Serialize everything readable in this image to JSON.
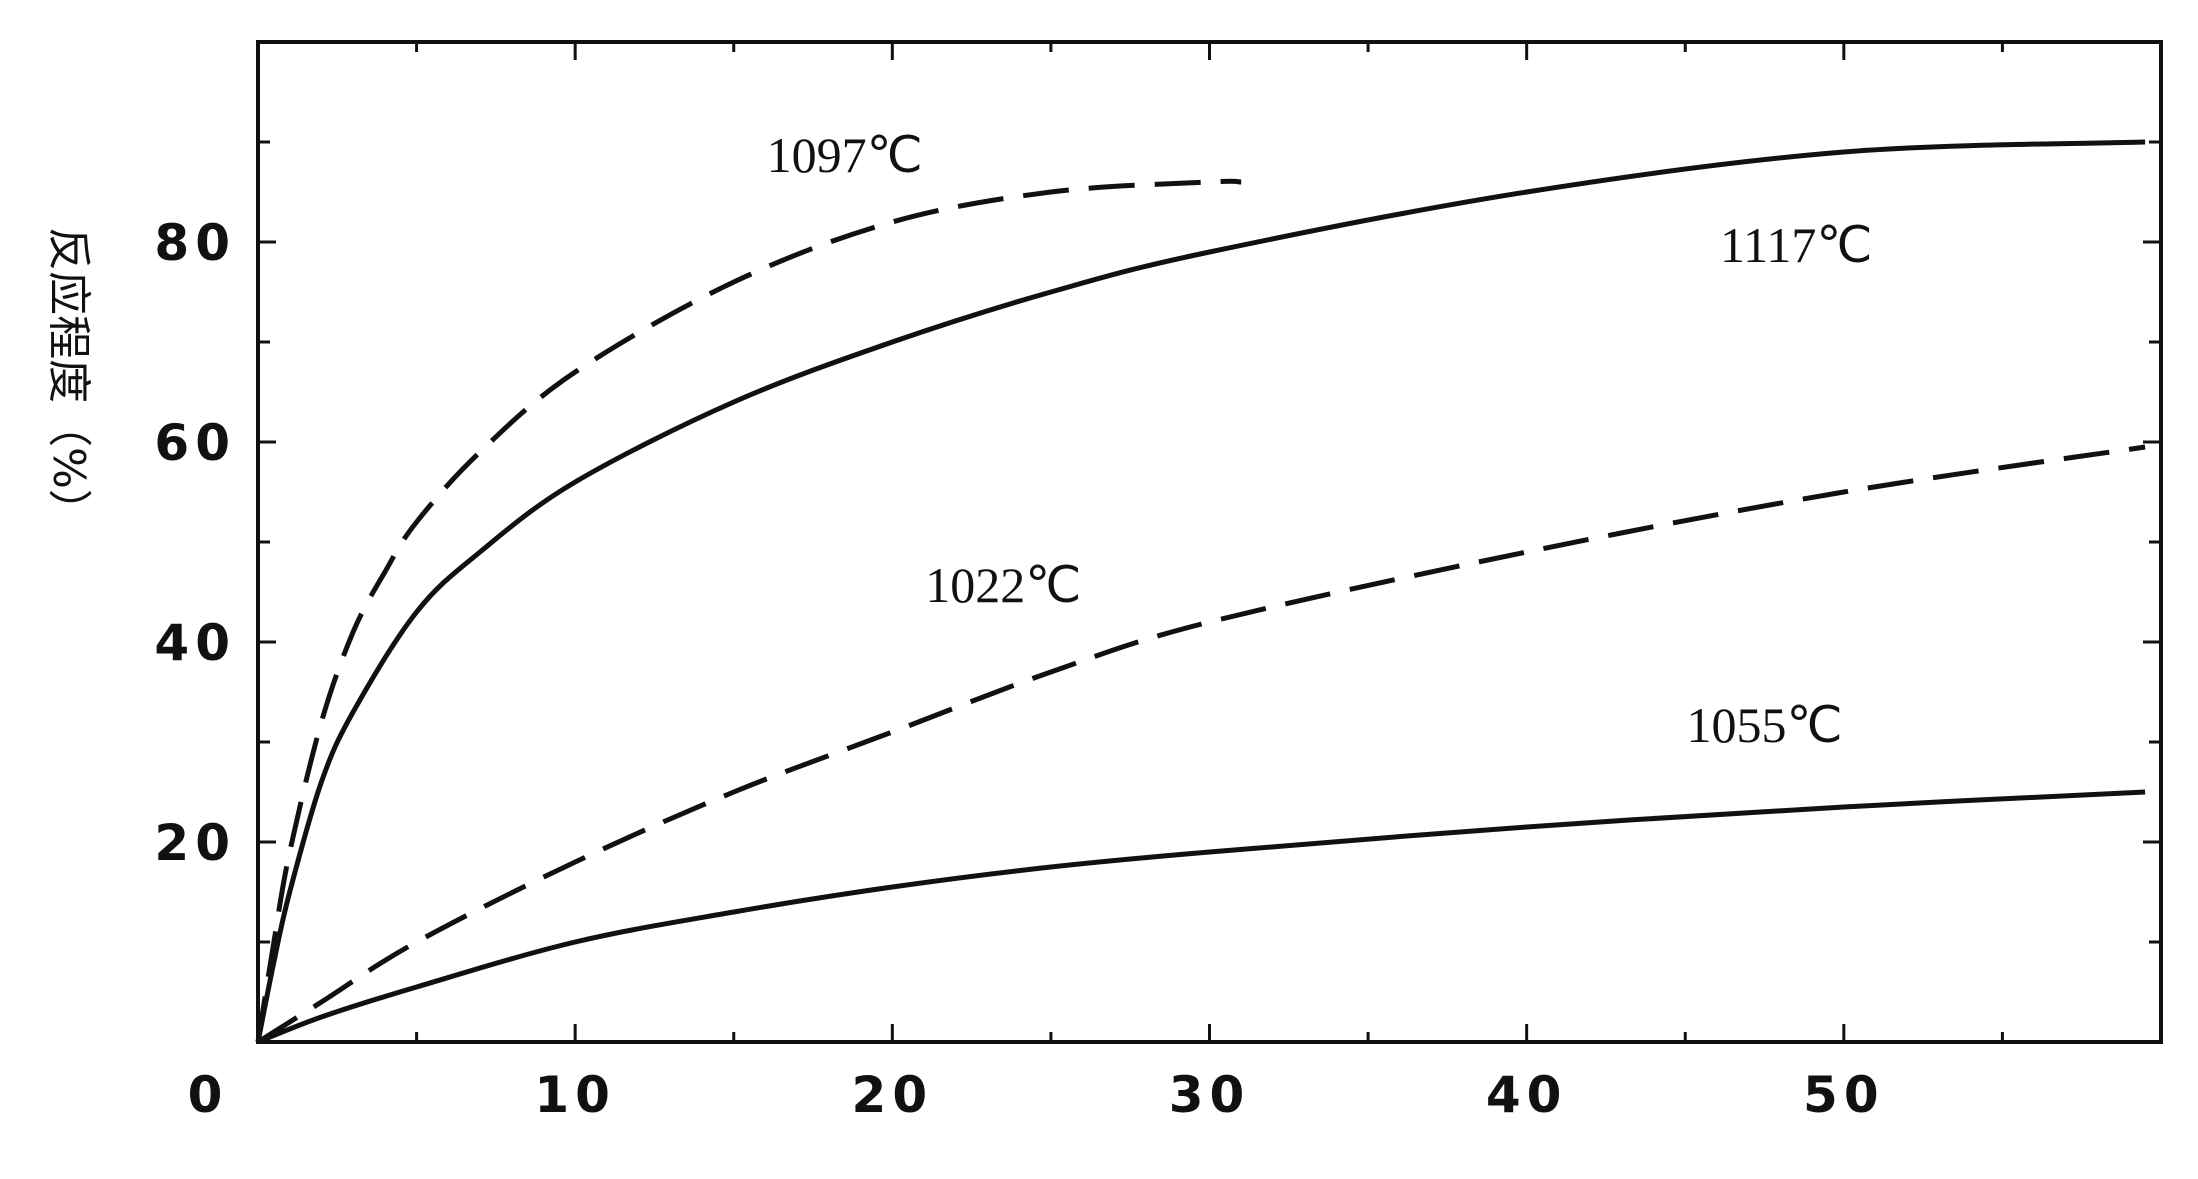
{
  "chart_data": {
    "type": "line",
    "title": "",
    "xlabel": "",
    "ylabel": "反应程度（%）",
    "xlim": [
      0,
      60
    ],
    "ylim": [
      0,
      100
    ],
    "x_ticks": [
      0,
      10,
      20,
      30,
      40,
      50
    ],
    "x_tick_labels": [
      "0",
      "10",
      "20",
      "30",
      "40",
      "50"
    ],
    "y_ticks": [
      20,
      40,
      60,
      80
    ],
    "y_tick_labels": [
      "20",
      "40",
      "60",
      "80"
    ],
    "grid": false,
    "legend": "none",
    "series": [
      {
        "name": "1097℃",
        "style": "dashed",
        "x": [
          0,
          0.5,
          1,
          2,
          3,
          4,
          5,
          7,
          10,
          15,
          20,
          25,
          30,
          31
        ],
        "y": [
          0,
          10,
          19,
          32,
          41,
          47,
          52,
          59,
          67,
          76,
          82,
          85,
          86,
          86
        ]
      },
      {
        "name": "1117℃",
        "style": "solid",
        "x": [
          0,
          0.5,
          1,
          2,
          3,
          5,
          7,
          10,
          15,
          20,
          25,
          30,
          40,
          50,
          59.5
        ],
        "y": [
          0,
          8,
          15,
          26,
          33,
          43,
          49,
          56,
          64,
          70,
          75,
          79,
          85,
          89,
          90
        ]
      },
      {
        "name": "1022℃",
        "style": "dashed",
        "x": [
          0,
          2,
          5,
          10,
          15,
          20,
          25,
          30,
          40,
          50,
          59.5
        ],
        "y": [
          0,
          4,
          10,
          18,
          25,
          31,
          37,
          42,
          49,
          55,
          59.5
        ]
      },
      {
        "name": "1055℃",
        "style": "solid",
        "x": [
          0,
          2,
          5,
          10,
          15,
          20,
          25,
          30,
          40,
          50,
          59.5
        ],
        "y": [
          0,
          2.5,
          5.5,
          10,
          13,
          15.5,
          17.5,
          19,
          21.5,
          23.5,
          25
        ]
      }
    ],
    "annotations": [
      {
        "text": "1097℃",
        "x": 18.5,
        "y": 87
      },
      {
        "text": "1117℃",
        "x": 48.5,
        "y": 78
      },
      {
        "text": "1022℃",
        "x": 23.5,
        "y": 44
      },
      {
        "text": "1055℃",
        "x": 47.5,
        "y": 30
      }
    ]
  }
}
